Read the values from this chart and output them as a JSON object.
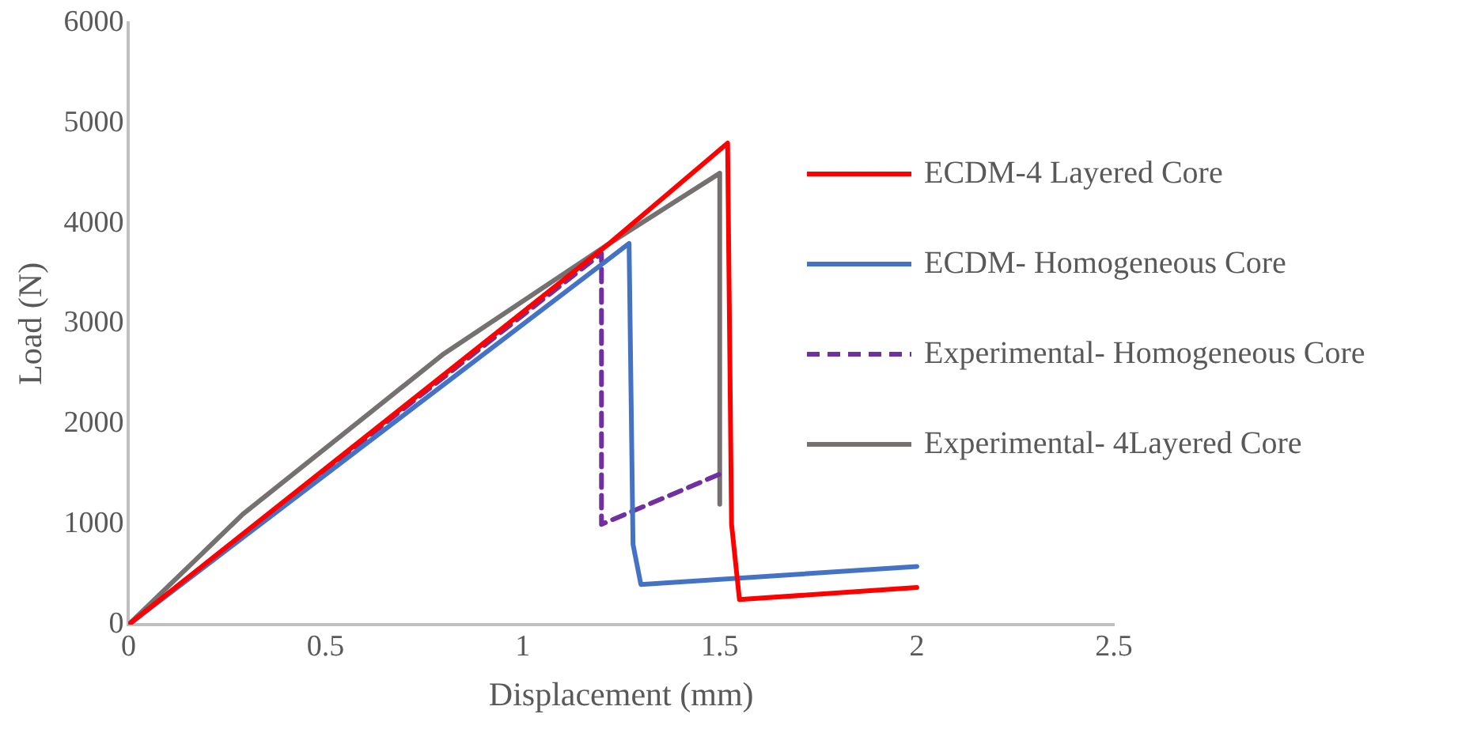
{
  "chart_data": {
    "type": "line",
    "xlabel": "Displacement (mm)",
    "ylabel": "Load (N)",
    "xlim": [
      0,
      2.5
    ],
    "xticks": [
      0,
      0.5,
      1,
      1.5,
      2,
      2.5
    ],
    "ylim": [
      0,
      6000
    ],
    "yticks": [
      0,
      1000,
      2000,
      3000,
      4000,
      5000,
      6000
    ],
    "grid": false,
    "legend": "right",
    "marker": "none",
    "series": [
      {
        "name": "ECDM-4 Layered Core",
        "color": "#ff0000",
        "line_style": "solid",
        "x": [
          0,
          1.22,
          1.52,
          1.53,
          1.55,
          2.0
        ],
        "values": [
          0,
          3800,
          4800,
          1000,
          250,
          370
        ]
      },
      {
        "name": "ECDM- Homogeneous Core",
        "color": "#4472c4",
        "line_style": "solid",
        "x": [
          0,
          1.27,
          1.28,
          1.3,
          2.0
        ],
        "values": [
          0,
          3800,
          800,
          400,
          580
        ]
      },
      {
        "name": "Experimental- Homogeneous Core",
        "color": "#7030a0",
        "line_style": "dashed",
        "x": [
          0,
          1.2,
          1.2,
          1.5
        ],
        "values": [
          0,
          3700,
          1000,
          1500
        ]
      },
      {
        "name": "Experimental- 4Layered Core",
        "color": "#767171",
        "line_style": "solid",
        "x": [
          0,
          0.29,
          0.8,
          1.22,
          1.5,
          1.5
        ],
        "values": [
          0,
          1100,
          2700,
          3800,
          4500,
          1200
        ]
      }
    ]
  }
}
